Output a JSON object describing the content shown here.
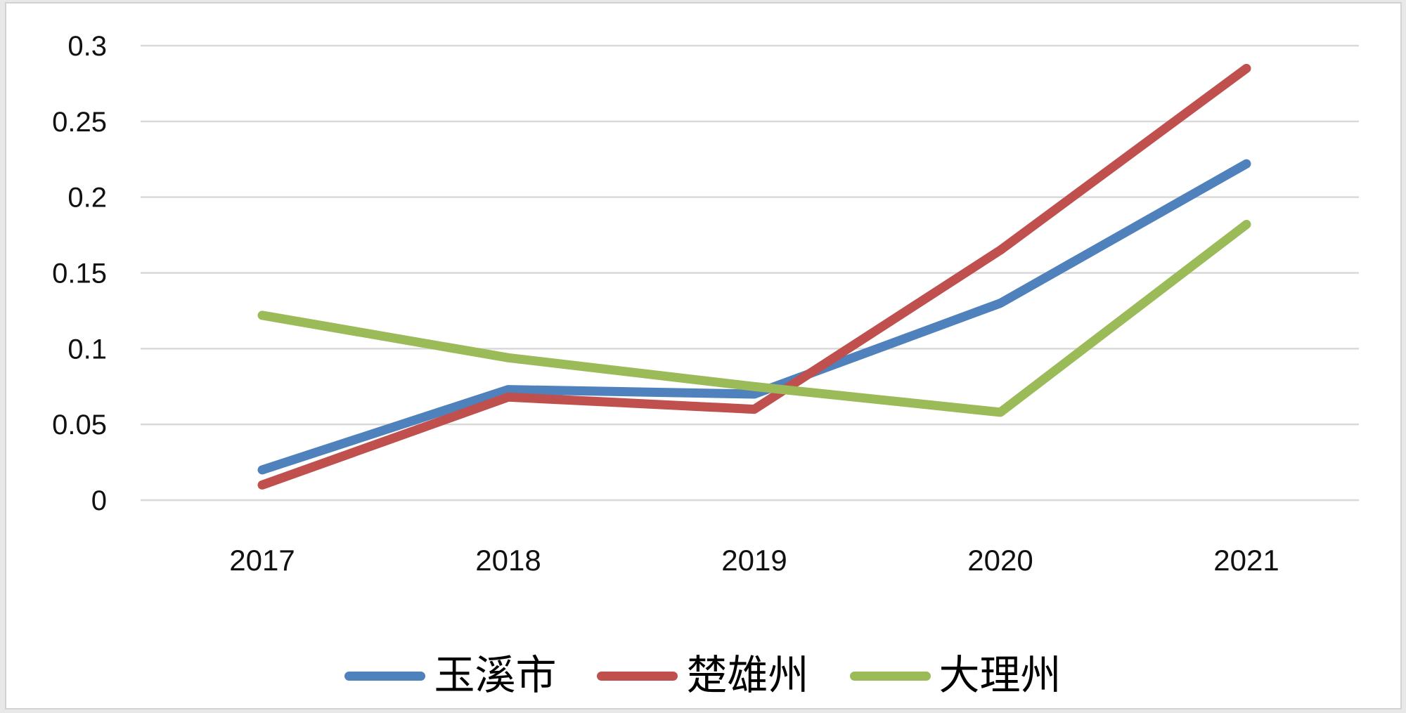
{
  "frame": {
    "background": "#ffffff",
    "border_color": "#d2d2d2",
    "outer_background": "#e8e8e8"
  },
  "chart_data": {
    "type": "line",
    "title": "",
    "xlabel": "",
    "ylabel": "",
    "categories": [
      "2017",
      "2018",
      "2019",
      "2020",
      "2021"
    ],
    "series": [
      {
        "name": "玉溪市",
        "color": "#4F81BD",
        "values": [
          0.02,
          0.073,
          0.07,
          0.13,
          0.222
        ]
      },
      {
        "name": "楚雄州",
        "color": "#C0504D",
        "values": [
          0.01,
          0.068,
          0.06,
          0.165,
          0.285
        ]
      },
      {
        "name": "大理州",
        "color": "#9BBB59",
        "values": [
          0.122,
          0.094,
          0.075,
          0.058,
          0.182
        ]
      }
    ],
    "ylim": [
      0,
      0.3
    ],
    "ytick_interval": 0.05,
    "yticks": [
      "0",
      "0.05",
      "0.1",
      "0.15",
      "0.2",
      "0.25",
      "0.3"
    ],
    "grid": true,
    "gridline_color": "#d9d9d9",
    "axis_text_color": "#111111",
    "line_width": 13,
    "legend_position": "bottom"
  }
}
